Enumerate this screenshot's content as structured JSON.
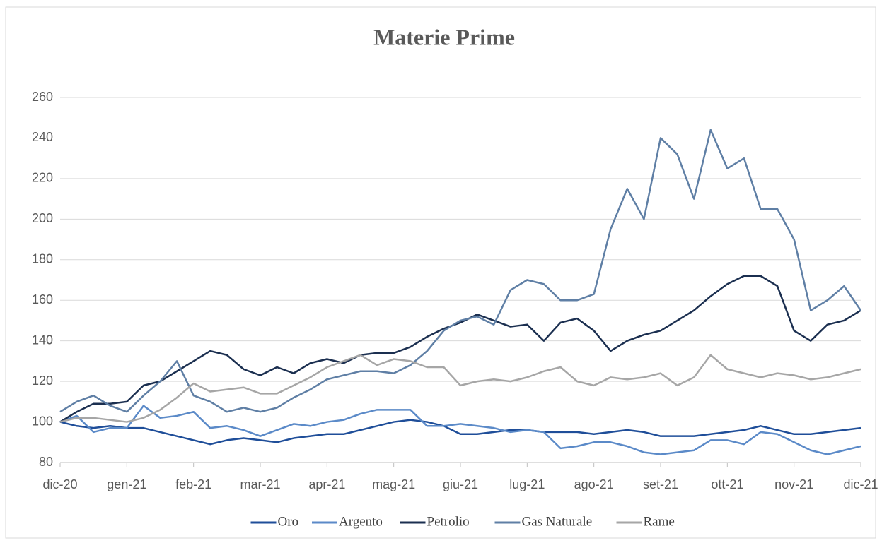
{
  "chart_data": {
    "type": "line",
    "title": "Materie Prime",
    "categories": [
      "dic-20",
      null,
      null,
      null,
      "gen-21",
      null,
      null,
      null,
      "feb-21",
      null,
      null,
      null,
      "mar-21",
      null,
      null,
      null,
      "apr-21",
      null,
      null,
      null,
      "mag-21",
      null,
      null,
      null,
      "giu-21",
      null,
      null,
      null,
      "lug-21",
      null,
      null,
      null,
      "ago-21",
      null,
      null,
      null,
      "set-21",
      null,
      null,
      null,
      "ott-21",
      null,
      null,
      null,
      "nov-21",
      null,
      null,
      null,
      "dic-21"
    ],
    "series": [
      {
        "name": "Oro",
        "color": "#1f4e99",
        "values": [
          100,
          98,
          97,
          98,
          97,
          97,
          95,
          93,
          91,
          89,
          91,
          92,
          91,
          90,
          92,
          93,
          94,
          94,
          96,
          98,
          100,
          101,
          100,
          98,
          94,
          94,
          95,
          96,
          96,
          95,
          95,
          95,
          94,
          95,
          96,
          95,
          93,
          93,
          93,
          94,
          95,
          96,
          98,
          96,
          94,
          94,
          95,
          96,
          97
        ]
      },
      {
        "name": "Argento",
        "color": "#5b8ac8",
        "values": [
          100,
          103,
          95,
          97,
          97,
          108,
          102,
          103,
          105,
          97,
          98,
          96,
          93,
          96,
          99,
          98,
          100,
          101,
          104,
          106,
          106,
          106,
          98,
          98,
          99,
          98,
          97,
          95,
          96,
          95,
          87,
          88,
          90,
          90,
          88,
          85,
          84,
          85,
          86,
          91,
          91,
          89,
          95,
          94,
          90,
          86,
          84,
          86,
          88
        ]
      },
      {
        "name": "Petrolio",
        "color": "#1b2f50",
        "values": [
          100,
          105,
          109,
          109,
          110,
          118,
          120,
          125,
          130,
          135,
          133,
          126,
          123,
          127,
          124,
          129,
          131,
          129,
          133,
          134,
          134,
          137,
          142,
          146,
          149,
          153,
          150,
          147,
          148,
          140,
          149,
          151,
          145,
          135,
          140,
          143,
          145,
          150,
          155,
          162,
          168,
          172,
          172,
          167,
          145,
          140,
          148,
          150,
          155
        ]
      },
      {
        "name": "Gas Naturale",
        "color": "#5f7fa5",
        "values": [
          105,
          110,
          113,
          108,
          105,
          113,
          120,
          130,
          113,
          110,
          105,
          107,
          105,
          107,
          112,
          116,
          121,
          123,
          125,
          125,
          124,
          128,
          135,
          145,
          150,
          152,
          148,
          165,
          170,
          168,
          160,
          160,
          163,
          195,
          215,
          200,
          240,
          232,
          210,
          244,
          225,
          230,
          205,
          205,
          190,
          155,
          160,
          167,
          155
        ]
      },
      {
        "name": "Rame",
        "color": "#a6a6a6",
        "values": [
          100,
          102,
          102,
          101,
          100,
          102,
          106,
          112,
          119,
          115,
          116,
          117,
          114,
          114,
          118,
          122,
          127,
          130,
          133,
          128,
          131,
          130,
          127,
          127,
          118,
          120,
          121,
          120,
          122,
          125,
          127,
          120,
          118,
          122,
          121,
          122,
          124,
          118,
          122,
          133,
          126,
          124,
          122,
          124,
          123,
          121,
          122,
          124,
          126
        ]
      }
    ],
    "ylim": [
      80,
      260
    ],
    "yticks": [
      80,
      100,
      120,
      140,
      160,
      180,
      200,
      220,
      240,
      260
    ],
    "grid": true,
    "legend": "bottom"
  }
}
